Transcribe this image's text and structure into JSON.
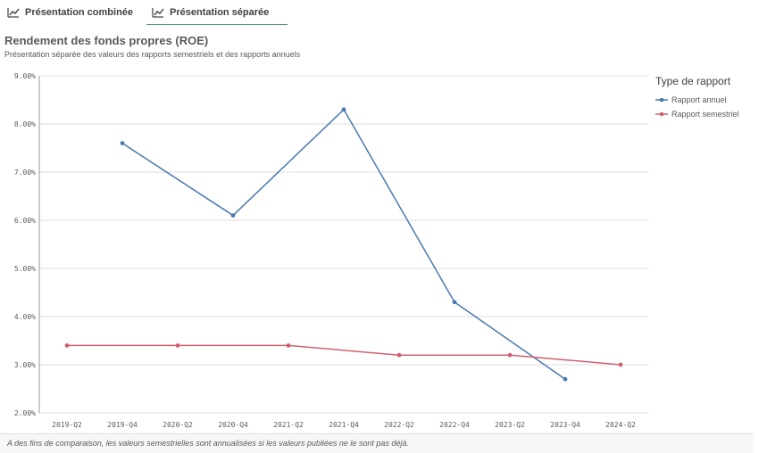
{
  "tabs": [
    {
      "label": "Présentation combinée",
      "icon": "line-chart-icon",
      "active": false
    },
    {
      "label": "Présentation séparée",
      "icon": "line-chart-icon",
      "active": true
    }
  ],
  "header": {
    "title": "Rendement des fonds propres (ROE)",
    "subtitle": "Présentation séparée des valeurs des rapports semestriels et des rapports annuels"
  },
  "colors": {
    "annual": "#4a78b0",
    "semiannual": "#d06070",
    "grid": "#dcdcdc",
    "accent": "#4a9e63"
  },
  "chart_data": {
    "type": "line",
    "categories": [
      "2019-Q2",
      "2019-Q4",
      "2020-Q2",
      "2020-Q4",
      "2021-Q2",
      "2021-Q4",
      "2022-Q2",
      "2022-Q4",
      "2023-Q2",
      "2023-Q4",
      "2024-Q2"
    ],
    "y_ticks": [
      "2.00%",
      "3.00%",
      "4.00%",
      "5.00%",
      "6.00%",
      "7.00%",
      "8.00%",
      "9.00%"
    ],
    "ylim": [
      2.0,
      9.0
    ],
    "grid": true,
    "legend_position": "right",
    "legend_title": "Type de rapport",
    "series": [
      {
        "name": "Rapport annuel",
        "color": "#4a78b0",
        "values": [
          null,
          7.6,
          null,
          6.1,
          null,
          8.3,
          null,
          4.3,
          null,
          2.7,
          null
        ]
      },
      {
        "name": "Rapport semestriel",
        "color": "#d06070",
        "values": [
          3.4,
          null,
          3.4,
          null,
          3.4,
          null,
          3.2,
          null,
          3.2,
          null,
          3.0
        ]
      }
    ]
  },
  "footnote": "A des fins de comparaison, les valeurs semestrielles sont annualisées si les valeurs publiées ne le sont pas déjà."
}
